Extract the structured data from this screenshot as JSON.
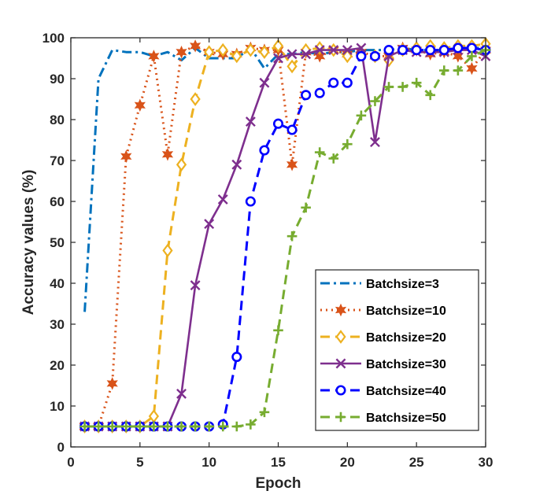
{
  "chart_data": {
    "type": "line",
    "title": "",
    "xlabel": "Epoch",
    "ylabel": "Accuracy values (%)",
    "xlim": [
      0,
      30
    ],
    "ylim": [
      0,
      100
    ],
    "xticks": [
      0,
      5,
      10,
      15,
      20,
      25,
      30
    ],
    "yticks": [
      0,
      10,
      20,
      30,
      40,
      50,
      60,
      70,
      80,
      90,
      100
    ],
    "grid": false,
    "legend_position": "bottom-right",
    "x": [
      1,
      2,
      3,
      4,
      5,
      6,
      7,
      8,
      9,
      10,
      11,
      12,
      13,
      14,
      15,
      16,
      17,
      18,
      19,
      20,
      21,
      22,
      23,
      24,
      25,
      26,
      27,
      28,
      29,
      30
    ],
    "series": [
      {
        "name": "Batchsize=3",
        "color": "#0072BD",
        "line_style": "dashdot",
        "marker": "none",
        "values": [
          33,
          90,
          97,
          96.5,
          96.5,
          95.5,
          96.5,
          94.5,
          97.5,
          95,
          95,
          95,
          97.5,
          92.5,
          96,
          96,
          96.5,
          96,
          96.5,
          96.5,
          97,
          97,
          97,
          97.5,
          97,
          97,
          97,
          97.5,
          97.5,
          97.5
        ]
      },
      {
        "name": "Batchsize=10",
        "color": "#D95319",
        "line_style": "dotted",
        "marker": "hexagram",
        "values": [
          5,
          5,
          15.5,
          71,
          83.5,
          95.5,
          71.5,
          96.5,
          98,
          96.5,
          96,
          96,
          97.5,
          97,
          97,
          69,
          96.5,
          95.5,
          97,
          96,
          96.5,
          95.5,
          95.5,
          97.5,
          97,
          96,
          96.5,
          95.5,
          92.5,
          97
        ]
      },
      {
        "name": "Batchsize=20",
        "color": "#EDB120",
        "line_style": "dashed",
        "marker": "diamond",
        "values": [
          5,
          5,
          5,
          5,
          5,
          7.5,
          48,
          69,
          85,
          96.5,
          97,
          95.5,
          97,
          96.5,
          98,
          93,
          97,
          97.5,
          97,
          95.5,
          96,
          95.5,
          94.5,
          97,
          97.5,
          98,
          97.5,
          98,
          98,
          98.5
        ]
      },
      {
        "name": "Batchsize=30",
        "color": "#7E2F8E",
        "line_style": "solid",
        "marker": "x",
        "values": [
          5,
          5,
          5,
          5,
          5,
          5,
          5,
          13,
          39.5,
          54.5,
          60.5,
          69,
          79.5,
          89,
          95,
          96,
          96,
          97,
          97,
          97,
          97.5,
          74.5,
          95.5,
          97,
          96.5,
          96.5,
          96.5,
          97,
          97,
          95.5
        ]
      },
      {
        "name": "Batchsize=40",
        "color": "#0000FF",
        "line_style": "dashed",
        "marker": "circle",
        "values": [
          5,
          5,
          5,
          5,
          5,
          5,
          5,
          5,
          5,
          5,
          5.5,
          22,
          60,
          72.5,
          79,
          77.5,
          86,
          86.5,
          89,
          89,
          95.5,
          95.5,
          97,
          97,
          97,
          97,
          97,
          97.5,
          97.5,
          97
        ]
      },
      {
        "name": "Batchsize=50",
        "color": "#77AC30",
        "line_style": "dashed",
        "marker": "plus",
        "values": [
          5,
          5,
          5,
          5,
          5,
          5,
          5,
          5,
          5,
          5,
          5,
          5,
          5.5,
          8.5,
          28.5,
          51.5,
          58.5,
          72,
          70.5,
          74,
          81,
          84.5,
          88,
          88,
          89,
          86,
          92,
          92,
          95.5,
          97
        ]
      }
    ]
  }
}
